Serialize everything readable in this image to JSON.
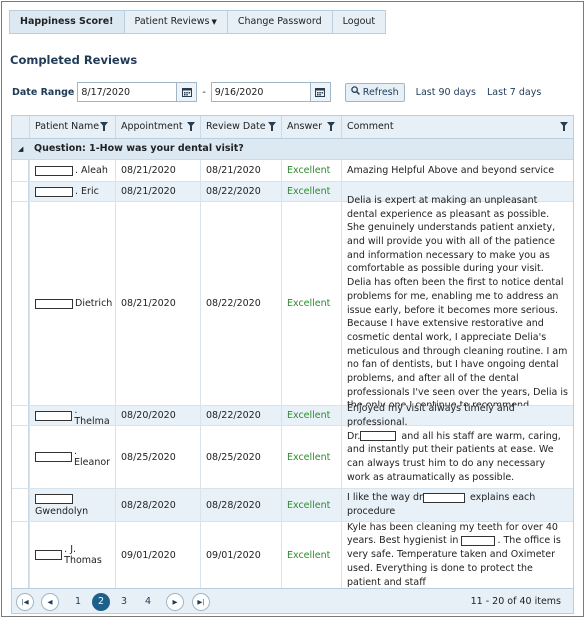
{
  "nav": {
    "items": [
      {
        "label": "Happiness Score!",
        "active": true
      },
      {
        "label": "Patient Reviews",
        "dropdown": true
      },
      {
        "label": "Change Password"
      },
      {
        "label": "Logout"
      }
    ]
  },
  "page_title": "Completed Reviews",
  "date_range": {
    "label": "Date Range",
    "from": "8/17/2020",
    "to": "9/16/2020",
    "separator": "-",
    "refresh_label": "Refresh",
    "quick_links": [
      "Last 90 days",
      "Last 7 days"
    ]
  },
  "grid": {
    "columns": [
      "Patient Name",
      "Appointment",
      "Review Date",
      "Answer",
      "Comment"
    ],
    "group_label": "Question: 1-How was your dental visit?",
    "rows": [
      {
        "name": ". Aleah",
        "appointment": "08/21/2020",
        "review_date": "08/21/2020",
        "answer": "Excellent",
        "comment": "Amazing Helpful Above and beyond service"
      },
      {
        "name": ". Eric",
        "appointment": "08/21/2020",
        "review_date": "08/22/2020",
        "answer": "Excellent",
        "comment": ""
      },
      {
        "name": "Dietrich",
        "appointment": "08/21/2020",
        "review_date": "08/22/2020",
        "answer": "Excellent",
        "comment": "Delia is expert at making an unpleasant dental experience as pleasant as possible. She genuinely understands patient anxiety, and will provide you with all of the patience and information necessary to make you as comfortable as possible during your visit. Delia has often been the first to notice dental problems for me, enabling me to address an issue early, before it becomes more serious. Because I have extensive restorative and cosmetic dental work, I appreciate Delia's meticulous and through cleaning routine. I am no fan of dentists, but I have ongoing dental problems, and after all of the dental professionals I've seen over the years, Delia is the only one I continue to recommend."
      },
      {
        "name": ". Thelma",
        "appointment": "08/20/2020",
        "review_date": "08/22/2020",
        "answer": "Excellent",
        "comment": "Enjoyed my visit always timely and professional."
      },
      {
        "name": ". Eleanor",
        "appointment": "08/25/2020",
        "review_date": "08/25/2020",
        "answer": "Excellent",
        "comment_a": "Dr.",
        "comment_b": "and all his staff are warm, caring, and instantly put their patients at ease. We can always trust him to do any necessary work as atraumatically as possible."
      },
      {
        "name": "Gwendolyn",
        "appointment": "08/28/2020",
        "review_date": "08/28/2020",
        "answer": "Excellent",
        "comment_a": "I like the way dr",
        "comment_b": "explains each procedure"
      },
      {
        "name": ". J. Thomas",
        "appointment": "09/01/2020",
        "review_date": "09/01/2020",
        "answer": "Excellent",
        "comment_a": "Kyle has been cleaning my teeth for over 40 years. Best hygienist in",
        "comment_b": ". The office is very safe. Temperature taken and Oximeter used. Everything is done to protect the patient and staff"
      }
    ]
  },
  "pager": {
    "pages": [
      "1",
      "2",
      "3",
      "4"
    ],
    "current_page": "2",
    "info": "11 - 20 of 40 items",
    "accent": "#1f5f8b"
  }
}
